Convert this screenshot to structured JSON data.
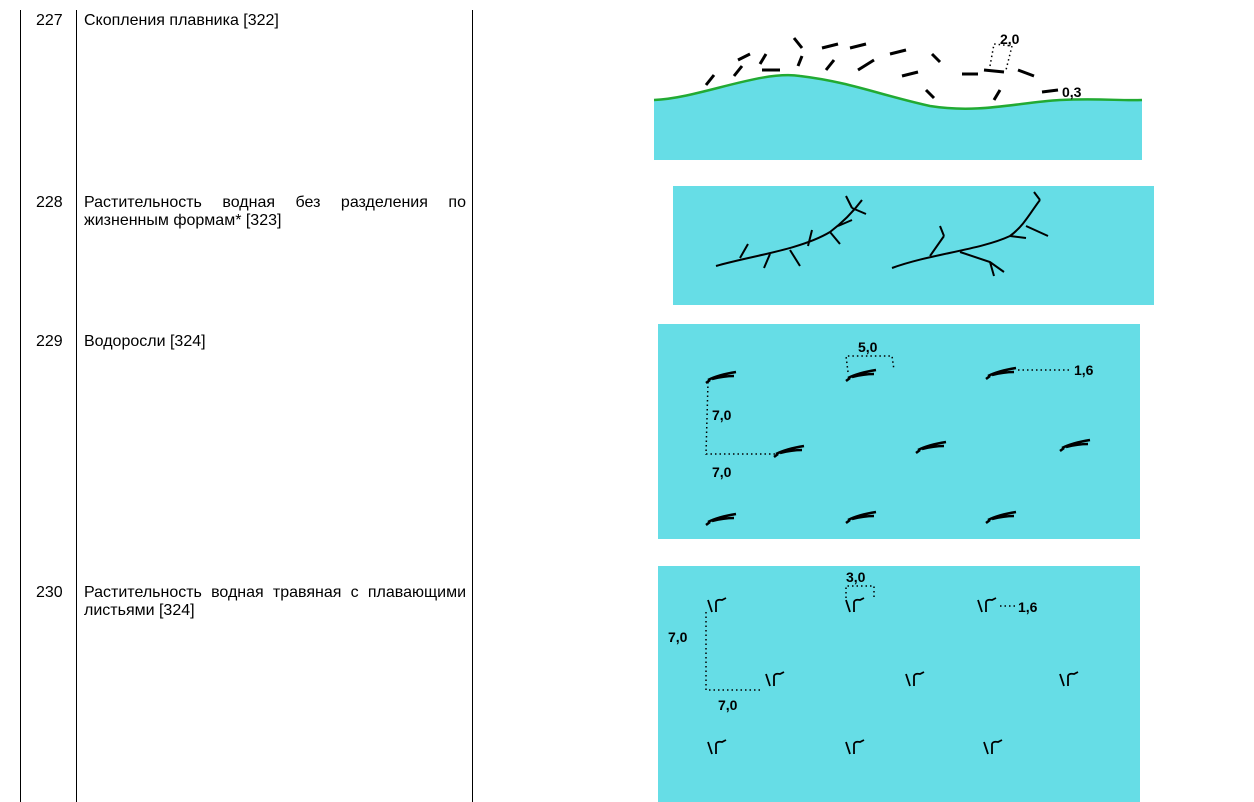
{
  "rows": [
    {
      "number": "227",
      "text": "Скопления плавника [322]",
      "labels": [
        "2,0",
        "0,3"
      ]
    },
    {
      "number": "228",
      "text": "Растительность водная без разделения по жизненным формам* [323]",
      "labels": []
    },
    {
      "number": "229",
      "text": "Водоросли [324]",
      "labels": [
        "5,0",
        "1,6",
        "7,0",
        "7,0"
      ]
    },
    {
      "number": "230",
      "text": "Растительность водная травяная с плавающими листьями [324]",
      "labels": [
        "3,0",
        "1,6",
        "7,0",
        "7,0"
      ]
    }
  ]
}
